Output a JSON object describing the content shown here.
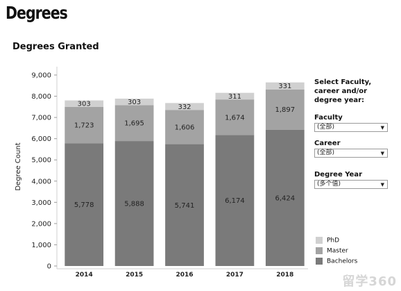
{
  "page": {
    "title": "Degrees"
  },
  "filters": {
    "prompt": "Select Faculty, career and/or degree year:",
    "faculty": {
      "label": "Faculty",
      "value": "(全部)"
    },
    "career": {
      "label": "Career",
      "value": "(全部)"
    },
    "degree_year": {
      "label": "Degree Year",
      "value": "(多个值)"
    },
    "arrow_icon": "triangle-down-icon"
  },
  "watermark": {
    "text": "留学360"
  },
  "colors": {
    "bachelors": "#7a7a7a",
    "master": "#a3a3a3",
    "phd": "#d0d0d0"
  },
  "chart_data": {
    "type": "bar",
    "stacked": true,
    "title": "Degrees Granted",
    "xlabel": "",
    "ylabel": "Degree Count",
    "categories": [
      "2014",
      "2015",
      "2016",
      "2017",
      "2018"
    ],
    "series": [
      {
        "name": "Bachelors",
        "values": [
          5778,
          5888,
          5741,
          6174,
          6424
        ]
      },
      {
        "name": "Master",
        "values": [
          1723,
          1695,
          1606,
          1674,
          1897
        ]
      },
      {
        "name": "PhD",
        "values": [
          303,
          303,
          332,
          311,
          331
        ]
      }
    ],
    "data_labels": {
      "Bachelors": [
        "5,778",
        "5,888",
        "5,741",
        "6,174",
        "6,424"
      ],
      "Master": [
        "1,723",
        "1,695",
        "1,606",
        "1,674",
        "1,897"
      ],
      "PhD": [
        "303",
        "303",
        "332",
        "311",
        "331"
      ]
    },
    "yticks": [
      0,
      1000,
      2000,
      3000,
      4000,
      5000,
      6000,
      7000,
      8000,
      9000
    ],
    "ytick_labels": [
      "0",
      "1,000",
      "2,000",
      "3,000",
      "4,000",
      "5,000",
      "6,000",
      "7,000",
      "8,000",
      "9,000"
    ],
    "ylim": [
      0,
      9000
    ],
    "grid": false,
    "legend": {
      "position": "bottom-right",
      "order": [
        "PhD",
        "Master",
        "Bachelors"
      ]
    }
  }
}
